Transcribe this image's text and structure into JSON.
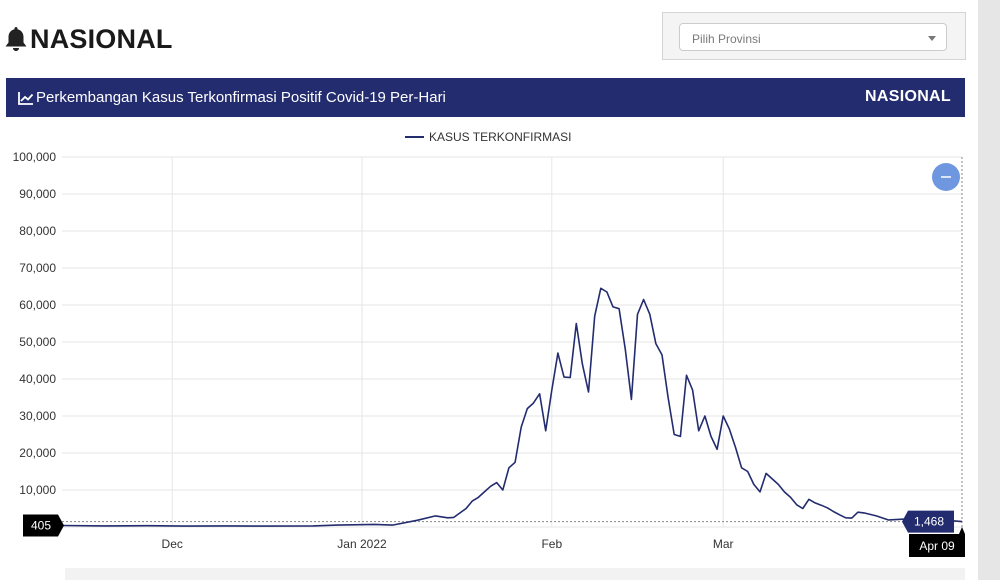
{
  "page": {
    "title": "NASIONAL",
    "province_placeholder": "Pilih Provinsi"
  },
  "card": {
    "title": "Perkembangan Kasus Terkonfirmasi Positif Covid-19 Per-Hari",
    "region": "NASIONAL"
  },
  "colors": {
    "header_bg": "#232c6e",
    "line": "#232c6e",
    "zoom_button": "#6f97e0"
  },
  "icons": {
    "title_icon": "bell-icon",
    "header_icon": "line-chart-icon",
    "zoom": "minus-icon"
  },
  "chart_data": {
    "type": "line",
    "title": "",
    "xlabel": "",
    "ylabel": "",
    "x_start": "2021-11-13",
    "x_end": "2022-04-09",
    "ylim": [
      0,
      100000
    ],
    "yticks": [
      0,
      10000,
      20000,
      30000,
      40000,
      50000,
      60000,
      70000,
      80000,
      90000,
      100000
    ],
    "ytick_labels": [
      "0",
      "10,000",
      "20,000",
      "30,000",
      "40,000",
      "50,000",
      "60,000",
      "70,000",
      "80,000",
      "90,000",
      "100,000"
    ],
    "xticks": [
      {
        "date": "2021-12-01",
        "label": "Dec"
      },
      {
        "date": "2022-01-01",
        "label": "Jan 2022"
      },
      {
        "date": "2022-02-01",
        "label": "Feb"
      },
      {
        "date": "2022-03-01",
        "label": "Mar"
      }
    ],
    "grid": true,
    "legend": "top-center",
    "series": [
      {
        "name": "KASUS TERKONFIRMASI",
        "points": [
          [
            "2021-11-13",
            405
          ],
          [
            "2021-11-20",
            300
          ],
          [
            "2021-11-27",
            350
          ],
          [
            "2021-12-03",
            250
          ],
          [
            "2021-12-10",
            300
          ],
          [
            "2021-12-17",
            250
          ],
          [
            "2021-12-24",
            300
          ],
          [
            "2021-12-28",
            500
          ],
          [
            "2022-01-03",
            700
          ],
          [
            "2022-01-06",
            500
          ],
          [
            "2022-01-10",
            1800
          ],
          [
            "2022-01-13",
            3000
          ],
          [
            "2022-01-15",
            2500
          ],
          [
            "2022-01-16",
            2600
          ],
          [
            "2022-01-18",
            5000
          ],
          [
            "2022-01-19",
            7000
          ],
          [
            "2022-01-20",
            8000
          ],
          [
            "2022-01-21",
            9500
          ],
          [
            "2022-01-22",
            11000
          ],
          [
            "2022-01-23",
            12000
          ],
          [
            "2022-01-24",
            10000
          ],
          [
            "2022-01-25",
            16000
          ],
          [
            "2022-01-26",
            17500
          ],
          [
            "2022-01-27",
            27000
          ],
          [
            "2022-01-28",
            32000
          ],
          [
            "2022-01-29",
            33500
          ],
          [
            "2022-01-30",
            36000
          ],
          [
            "2022-01-31",
            26000
          ],
          [
            "2022-02-01",
            37000
          ],
          [
            "2022-02-02",
            47000
          ],
          [
            "2022-02-03",
            40500
          ],
          [
            "2022-02-04",
            40400
          ],
          [
            "2022-02-05",
            55000
          ],
          [
            "2022-02-06",
            44000
          ],
          [
            "2022-02-07",
            36500
          ],
          [
            "2022-02-08",
            57000
          ],
          [
            "2022-02-09",
            64500
          ],
          [
            "2022-02-10",
            63500
          ],
          [
            "2022-02-11",
            59500
          ],
          [
            "2022-02-12",
            59000
          ],
          [
            "2022-02-13",
            48000
          ],
          [
            "2022-02-14",
            34500
          ],
          [
            "2022-02-15",
            57500
          ],
          [
            "2022-02-16",
            61500
          ],
          [
            "2022-02-17",
            57500
          ],
          [
            "2022-02-18",
            49500
          ],
          [
            "2022-02-19",
            46500
          ],
          [
            "2022-02-20",
            35000
          ],
          [
            "2022-02-21",
            25000
          ],
          [
            "2022-02-22",
            24500
          ],
          [
            "2022-02-23",
            41000
          ],
          [
            "2022-02-24",
            37000
          ],
          [
            "2022-02-25",
            26000
          ],
          [
            "2022-02-26",
            30000
          ],
          [
            "2022-02-27",
            24500
          ],
          [
            "2022-02-28",
            21000
          ],
          [
            "2022-03-01",
            30000
          ],
          [
            "2022-03-02",
            26500
          ],
          [
            "2022-03-03",
            21500
          ],
          [
            "2022-03-04",
            16000
          ],
          [
            "2022-03-05",
            15000
          ],
          [
            "2022-03-06",
            11500
          ],
          [
            "2022-03-07",
            9500
          ],
          [
            "2022-03-08",
            14500
          ],
          [
            "2022-03-09",
            13000
          ],
          [
            "2022-03-10",
            11500
          ],
          [
            "2022-03-11",
            9500
          ],
          [
            "2022-03-12",
            8000
          ],
          [
            "2022-03-13",
            6000
          ],
          [
            "2022-03-14",
            5000
          ],
          [
            "2022-03-15",
            7500
          ],
          [
            "2022-03-16",
            6500
          ],
          [
            "2022-03-17",
            5900
          ],
          [
            "2022-03-18",
            5200
          ],
          [
            "2022-03-19",
            4200
          ],
          [
            "2022-03-20",
            3300
          ],
          [
            "2022-03-21",
            2500
          ],
          [
            "2022-03-22",
            2400
          ],
          [
            "2022-03-23",
            4000
          ],
          [
            "2022-03-24",
            3800
          ],
          [
            "2022-03-26",
            3000
          ],
          [
            "2022-03-28",
            1900
          ],
          [
            "2022-03-31",
            2200
          ],
          [
            "2022-04-03",
            1600
          ],
          [
            "2022-04-06",
            1900
          ],
          [
            "2022-04-09",
            1468
          ]
        ]
      }
    ],
    "markers": {
      "first_value_label": "405",
      "last_value_label": "1,468",
      "last_date_label": "Apr 09"
    }
  }
}
